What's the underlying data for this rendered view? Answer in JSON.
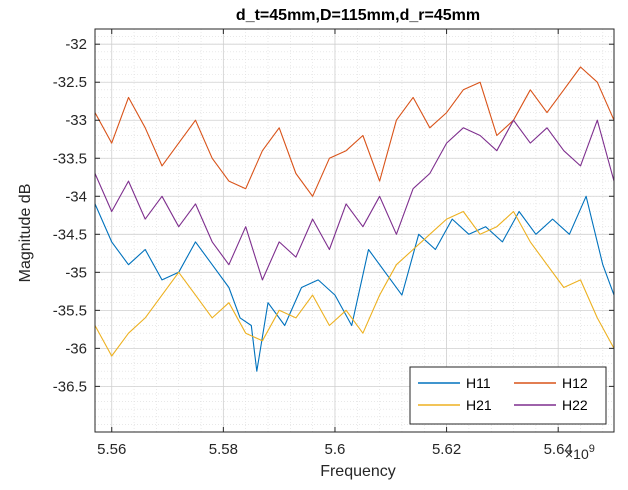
{
  "chart_data": {
    "type": "line",
    "title": "d_t=45mm,D=115mm,d_r=45mm",
    "xlabel": "Frequency",
    "ylabel": "Magnitude dB",
    "x_exponent_label": "×10",
    "x_exponent_power": "9",
    "xlim": [
      5.557,
      5.65
    ],
    "ylim": [
      -37.1,
      -31.8
    ],
    "x_ticks": [
      5.56,
      5.58,
      5.6,
      5.62,
      5.64
    ],
    "x_tick_labels": [
      "5.56",
      "5.58",
      "5.6",
      "5.62",
      "5.64"
    ],
    "y_ticks": [
      -32,
      -32.5,
      -33,
      -33.5,
      -34,
      -34.5,
      -35,
      -35.5,
      -36,
      -36.5
    ],
    "y_tick_labels": [
      "-32",
      "-32.5",
      "-33",
      "-33.5",
      "-34",
      "-34.5",
      "-35",
      "-35.5",
      "-36",
      "-36.5"
    ],
    "grid": true,
    "minor_grid": true,
    "legend_position": "bottom-right",
    "legend_columns": 2,
    "series": [
      {
        "name": "H11",
        "color": "#0072BD",
        "x": [
          5.557,
          5.56,
          5.563,
          5.566,
          5.569,
          5.572,
          5.575,
          5.578,
          5.581,
          5.583,
          5.585,
          5.586,
          5.588,
          5.591,
          5.594,
          5.597,
          5.6,
          5.603,
          5.606,
          5.609,
          5.612,
          5.615,
          5.618,
          5.621,
          5.624,
          5.627,
          5.63,
          5.633,
          5.636,
          5.639,
          5.642,
          5.645,
          5.648,
          5.65
        ],
        "values": [
          -34.1,
          -34.6,
          -34.9,
          -34.7,
          -35.1,
          -35.0,
          -34.6,
          -34.9,
          -35.2,
          -35.6,
          -35.7,
          -36.3,
          -35.4,
          -35.7,
          -35.2,
          -35.1,
          -35.3,
          -35.7,
          -34.7,
          -35.0,
          -35.3,
          -34.5,
          -34.7,
          -34.3,
          -34.5,
          -34.4,
          -34.6,
          -34.2,
          -34.5,
          -34.3,
          -34.5,
          -34.0,
          -34.9,
          -35.3
        ]
      },
      {
        "name": "H12",
        "color": "#D95319",
        "x": [
          5.557,
          5.56,
          5.563,
          5.566,
          5.569,
          5.572,
          5.575,
          5.578,
          5.581,
          5.584,
          5.587,
          5.59,
          5.593,
          5.596,
          5.599,
          5.602,
          5.605,
          5.608,
          5.611,
          5.614,
          5.617,
          5.62,
          5.623,
          5.626,
          5.629,
          5.632,
          5.635,
          5.638,
          5.641,
          5.644,
          5.647,
          5.65
        ],
        "values": [
          -32.9,
          -33.3,
          -32.7,
          -33.1,
          -33.6,
          -33.3,
          -33.0,
          -33.5,
          -33.8,
          -33.9,
          -33.4,
          -33.1,
          -33.7,
          -34.0,
          -33.5,
          -33.4,
          -33.2,
          -33.8,
          -33.0,
          -32.7,
          -33.1,
          -32.9,
          -32.6,
          -32.5,
          -33.2,
          -33.0,
          -32.6,
          -32.9,
          -32.6,
          -32.3,
          -32.5,
          -33.0
        ]
      },
      {
        "name": "H21",
        "color": "#EDB120",
        "x": [
          5.557,
          5.56,
          5.563,
          5.566,
          5.569,
          5.572,
          5.575,
          5.578,
          5.581,
          5.584,
          5.587,
          5.59,
          5.593,
          5.596,
          5.599,
          5.602,
          5.605,
          5.608,
          5.611,
          5.614,
          5.617,
          5.62,
          5.623,
          5.626,
          5.629,
          5.632,
          5.635,
          5.638,
          5.641,
          5.644,
          5.647,
          5.65
        ],
        "values": [
          -35.7,
          -36.1,
          -35.8,
          -35.6,
          -35.3,
          -35.0,
          -35.3,
          -35.6,
          -35.4,
          -35.8,
          -35.9,
          -35.5,
          -35.6,
          -35.3,
          -35.7,
          -35.5,
          -35.8,
          -35.3,
          -34.9,
          -34.7,
          -34.5,
          -34.3,
          -34.2,
          -34.5,
          -34.4,
          -34.2,
          -34.6,
          -34.9,
          -35.2,
          -35.1,
          -35.6,
          -36.0
        ]
      },
      {
        "name": "H22",
        "color": "#7E2F8E",
        "x": [
          5.557,
          5.56,
          5.563,
          5.566,
          5.569,
          5.572,
          5.575,
          5.578,
          5.581,
          5.584,
          5.587,
          5.59,
          5.593,
          5.596,
          5.599,
          5.602,
          5.605,
          5.608,
          5.611,
          5.614,
          5.617,
          5.62,
          5.623,
          5.626,
          5.629,
          5.632,
          5.635,
          5.638,
          5.641,
          5.644,
          5.647,
          5.65
        ],
        "values": [
          -33.7,
          -34.2,
          -33.8,
          -34.3,
          -34.0,
          -34.4,
          -34.1,
          -34.6,
          -34.9,
          -34.4,
          -35.1,
          -34.6,
          -34.8,
          -34.3,
          -34.7,
          -34.1,
          -34.4,
          -34.0,
          -34.5,
          -33.9,
          -33.7,
          -33.3,
          -33.1,
          -33.2,
          -33.4,
          -33.0,
          -33.3,
          -33.1,
          -33.4,
          -33.6,
          -33.0,
          -33.8
        ]
      }
    ]
  }
}
